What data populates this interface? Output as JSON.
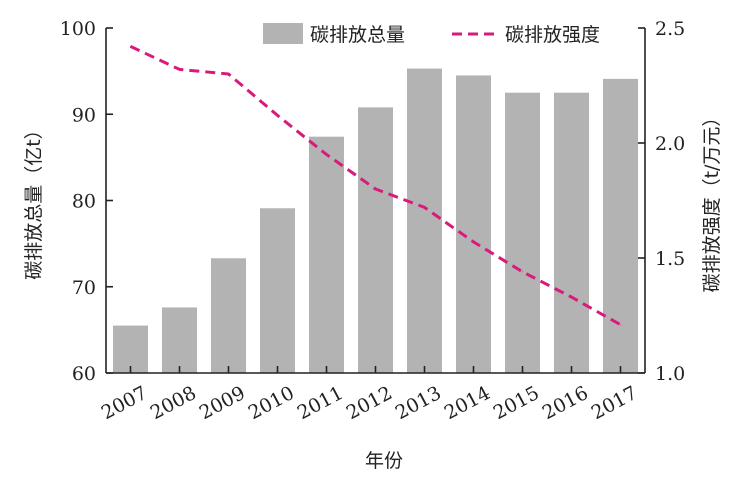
{
  "chart_data": {
    "type": "bar",
    "xlabel": "年份",
    "categories": [
      "2007",
      "2008",
      "2009",
      "2010",
      "2011",
      "2012",
      "2013",
      "2014",
      "2015",
      "2016",
      "2017"
    ],
    "series": [
      {
        "name": "碳排放总量",
        "type": "bar",
        "axis": "left",
        "color": "#b3b3b3",
        "values": [
          65.5,
          67.6,
          73.3,
          79.1,
          87.4,
          90.8,
          95.3,
          94.5,
          92.5,
          92.5,
          94.1
        ]
      },
      {
        "name": "碳排放强度",
        "type": "line",
        "style": "dashed",
        "axis": "right",
        "color": "#d81b7a",
        "values": [
          2.42,
          2.32,
          2.3,
          2.12,
          1.95,
          1.8,
          1.72,
          1.57,
          1.44,
          1.33,
          1.21
        ]
      }
    ],
    "ylabel": "碳排放总量（亿t）",
    "ylim": [
      60,
      100
    ],
    "yticks": [
      "60",
      "70",
      "80",
      "90",
      "100"
    ],
    "y2label": "碳排放强度（t/万元）",
    "y2lim": [
      1.0,
      2.5
    ],
    "y2ticks": [
      "1.0",
      "1.5",
      "2.0",
      "2.5"
    ],
    "legend": "top-right",
    "grid": false
  }
}
